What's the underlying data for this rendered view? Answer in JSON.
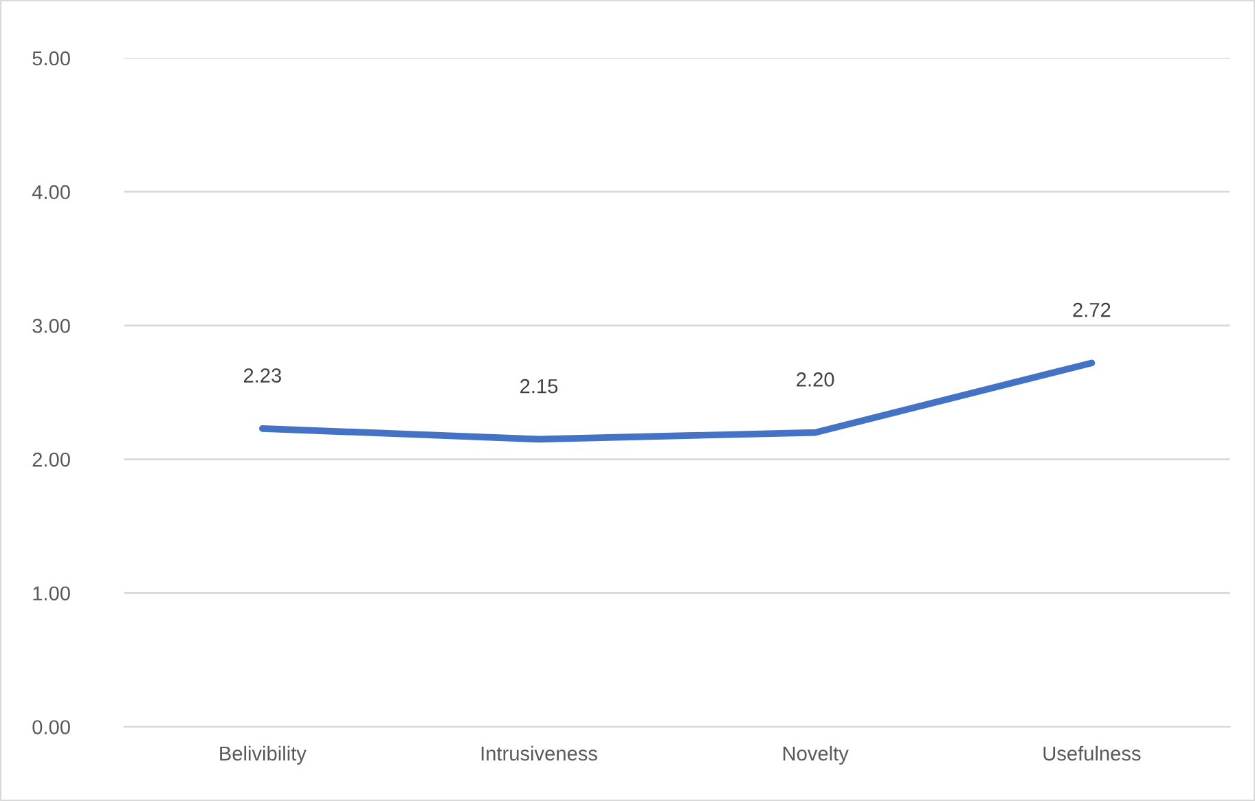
{
  "chart_data": {
    "type": "line",
    "categories": [
      "Belivibility",
      "Intrusiveness",
      "Novelty",
      "Usefulness"
    ],
    "series": [
      {
        "color": "#4472c4",
        "values": [
          2.23,
          2.15,
          2.2,
          2.72
        ],
        "value_labels": [
          "2.23",
          "2.15",
          "2.20",
          "2.72"
        ]
      }
    ],
    "ylim": [
      0,
      5
    ],
    "yticks": [
      {
        "value": 0,
        "label": "0.00"
      },
      {
        "value": 1,
        "label": "1.00"
      },
      {
        "value": 2,
        "label": "2.00"
      },
      {
        "value": 3,
        "label": "3.00"
      },
      {
        "value": 4,
        "label": "4.00"
      },
      {
        "value": 5,
        "label": "5.00"
      }
    ],
    "grid": "y",
    "marker": "none",
    "line_style": "solid",
    "legend": false
  }
}
